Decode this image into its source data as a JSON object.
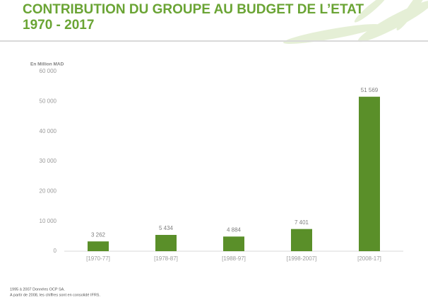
{
  "chart_data": {
    "type": "bar",
    "title": "CONTRIBUTION DU GROUPE AU BUDGET DE L’ETAT",
    "subtitle": "1970 - 2017",
    "y_label": "En Million MAD",
    "categories": [
      "[1970-77]",
      "[1978-87]",
      "[1988-97]",
      "[1998-2007]",
      "[2008-17]"
    ],
    "values": [
      3262,
      5434,
      4884,
      7401,
      51569
    ],
    "value_labels": [
      "3 262",
      "5 434",
      "4 884",
      "7 401",
      "51 569"
    ],
    "color": "#5a8f29",
    "ylim": [
      0,
      60000
    ],
    "yticks": [
      0,
      {
        "value": 10000,
        "label": "10 000"
      },
      {
        "value": 20000,
        "label": "20 000"
      },
      {
        "value": 30000,
        "label": "30 000"
      },
      {
        "value": 40000,
        "label": "40 000"
      },
      {
        "value": 50000,
        "label": "50 000"
      },
      {
        "value": 60000,
        "label": "60 000"
      }
    ],
    "notes": [
      "1995 à 2007 Données OCP SA.",
      "A partir de 2008, les chiffres sont en consolidé IFRS."
    ]
  }
}
